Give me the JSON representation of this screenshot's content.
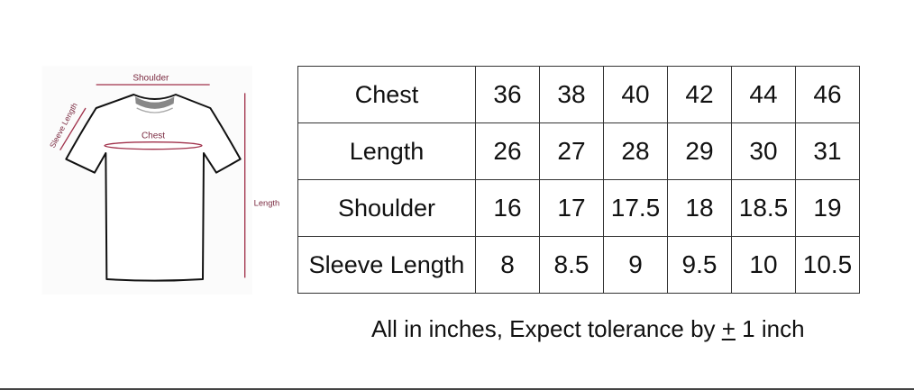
{
  "diagram": {
    "labels": {
      "shoulder": "Shoulder",
      "chest": "Chest",
      "length": "Length",
      "sleeve": "Sleeve Length"
    },
    "accent_color": "#a0304a"
  },
  "table": {
    "rows": [
      {
        "label": "Chest",
        "values": [
          "36",
          "38",
          "40",
          "42",
          "44",
          "46"
        ]
      },
      {
        "label": "Length",
        "values": [
          "26",
          "27",
          "28",
          "29",
          "30",
          "31"
        ]
      },
      {
        "label": "Shoulder",
        "values": [
          "16",
          "17",
          "17.5",
          "18",
          "18.5",
          "19"
        ]
      },
      {
        "label": "Sleeve Length",
        "values": [
          "8",
          "8.5",
          "9",
          "9.5",
          "10",
          "10.5"
        ]
      }
    ]
  },
  "note": {
    "prefix": "All in inches, Expect tolerance by ",
    "symbol": "+",
    "suffix": " 1 inch"
  }
}
